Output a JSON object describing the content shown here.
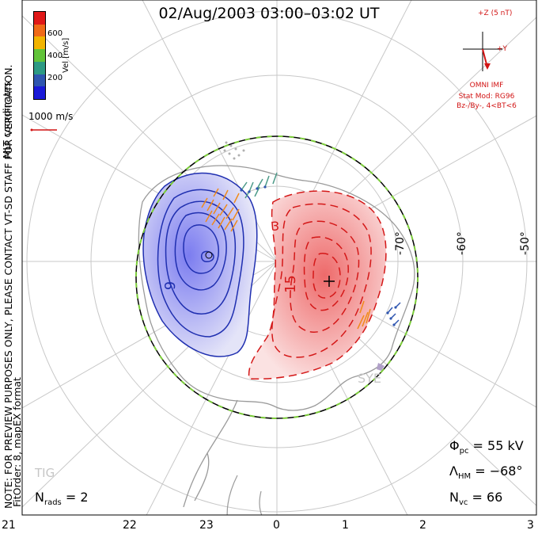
{
  "title": "02/Aug/2003 03:00–03:02 UT",
  "colorbar": {
    "ticks": [
      "600",
      "400",
      "200"
    ],
    "label": "Vel [m/s]",
    "colors": [
      "#e01818",
      "#f06a18",
      "#f2b400",
      "#62c43a",
      "#2d9a84",
      "#2f56b0",
      "#1a1ad8"
    ]
  },
  "side_notes": {
    "coords": "MLT coordinates",
    "preview": "NOTE: FOR PREVIEW PURPOSES ONLY, PLEASE CONTACT VT-SD STAFF FOR VERIFICATION.",
    "fitorder": "FitOrder: 8, mapEX format"
  },
  "scale": {
    "label": "1000 m/s"
  },
  "imf": {
    "z_label": "+Z (5 nT)",
    "y_label": "+Y",
    "source": "OMNI IMF",
    "model": "Stat Mod: RG96",
    "condition": "Bz-/By-, 4<BT<6"
  },
  "lat_labels": [
    "-70°",
    "-60°",
    "-50°"
  ],
  "contour_labels": [
    "3",
    "9",
    "15"
  ],
  "stations": [
    "SYE",
    "TIG"
  ],
  "stats": {
    "phi_pc": {
      "symbol": "Φ",
      "sub": "pc",
      "value": "= 55 kV"
    },
    "lambda_hm": {
      "symbol": "Λ",
      "sub": "HM",
      "value": "= −68°"
    },
    "n_vc": {
      "symbol": "N",
      "sub": "vc",
      "value": "= 66"
    },
    "n_rads": {
      "symbol": "N",
      "sub": "rads",
      "value": "= 2"
    }
  },
  "mlt_ticks": [
    "21",
    "22",
    "23",
    "0",
    "1",
    "2",
    "3"
  ],
  "colors": {
    "positive_contour": "#1f2fb0",
    "negative_contour": "#d41818",
    "hmb_green": "#7ccd3a",
    "grid": "#c8c8c8",
    "land": "#9a9a9a"
  }
}
